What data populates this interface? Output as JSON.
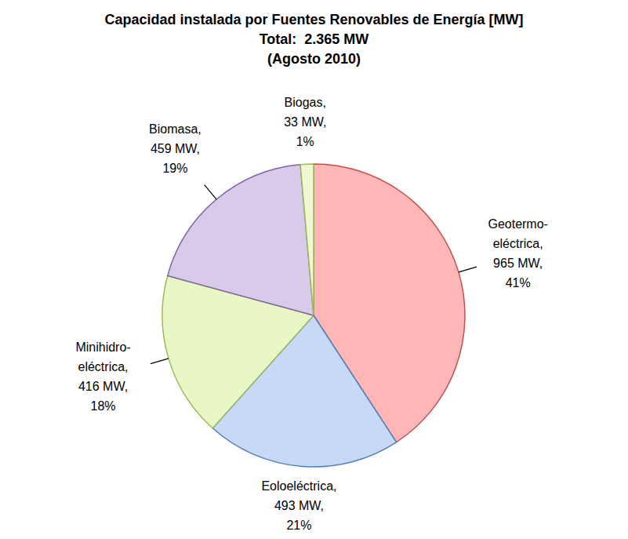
{
  "chart_data": {
    "type": "pie",
    "title": "Capacidad instalada por Fuentes Renovables de Energía [MW]",
    "subtitle": [
      "Total:  2.365 MW",
      "(Agosto 2010)"
    ],
    "categories": [
      "Geotermo-eléctrica",
      "Eoloeléctrica",
      "Minihidro-eléctrica",
      "Biomasa",
      "Biogas"
    ],
    "values": [
      965,
      493,
      416,
      459,
      33
    ],
    "value_labels": [
      "Geotermo-\neléctrica,\n965 MW,\n41%",
      "Eoloeléctrica,\n493 MW,\n21%",
      "Minihidro-\neléctrica,\n416 MW,\n18%",
      "Biomasa,\n459 MW,\n19%",
      "Biogas,\n33 MW,\n1%"
    ],
    "colors": [
      "#ffb6b6",
      "#c7d9f4",
      "#e9f7c6",
      "#d8cbe9",
      "#f0f8d2"
    ],
    "data_labels": true
  }
}
